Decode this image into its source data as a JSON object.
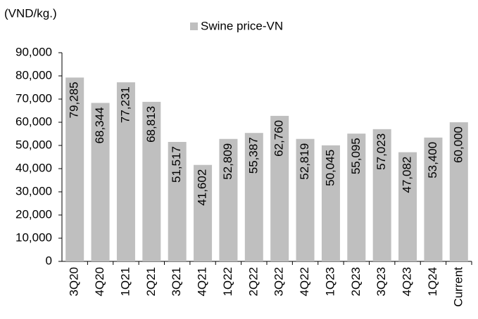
{
  "chart_data": {
    "type": "bar",
    "y_label": "(VND/kg.)",
    "categories": [
      "3Q20",
      "4Q20",
      "1Q21",
      "2Q21",
      "3Q21",
      "4Q21",
      "1Q22",
      "2Q22",
      "3Q22",
      "4Q22",
      "1Q23",
      "2Q23",
      "3Q23",
      "4Q23",
      "1Q24",
      "Current"
    ],
    "series": [
      {
        "name": "Swine price-VN",
        "color": "#bfbfbf",
        "values": [
          79285,
          68344,
          77231,
          68813,
          51517,
          41602,
          52809,
          55387,
          62760,
          52819,
          50045,
          55095,
          57023,
          47082,
          53400,
          60000
        ],
        "value_labels": [
          "79,285",
          "68,344",
          "77,231",
          "68,813",
          "51,517",
          "41,602",
          "52,809",
          "55,387",
          "62,760",
          "52,819",
          "50,045",
          "55,095",
          "57,023",
          "47,082",
          "53,400",
          "60,000"
        ]
      }
    ],
    "ylim": [
      0,
      90000
    ],
    "yticks": [
      0,
      {
        "value": 10000,
        "label": "10,000"
      },
      {
        "value": 20000,
        "label": "20,000"
      },
      {
        "value": 30000,
        "label": "30,000"
      },
      {
        "value": 40000,
        "label": "40,000"
      },
      {
        "value": 50000,
        "label": "50,000"
      },
      {
        "value": 60000,
        "label": "60,000"
      },
      {
        "value": 70000,
        "label": "70,000"
      },
      {
        "value": 80000,
        "label": "80,000"
      },
      {
        "value": 90000,
        "label": "90,000"
      }
    ],
    "grid": false,
    "legend": "top"
  }
}
